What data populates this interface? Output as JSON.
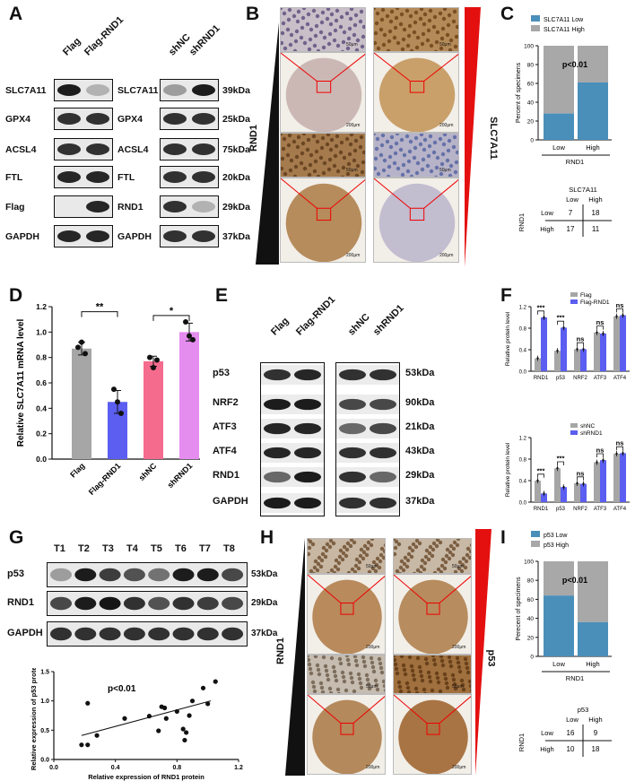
{
  "panels": {
    "A": "A",
    "B": "B",
    "C": "C",
    "D": "D",
    "E": "E",
    "F": "F",
    "G": "G",
    "H": "H",
    "I": "I"
  },
  "panelA": {
    "left_lanes": [
      "Flag",
      "Flag-RND1"
    ],
    "right_lanes": [
      "shNC",
      "shRND1"
    ],
    "left_rows": [
      "SLC7A11",
      "GPX4",
      "ACSL4",
      "FTL",
      "Flag",
      "GAPDH"
    ],
    "right_rows": [
      "SLC7A11",
      "GPX4",
      "ACSL4",
      "FTL",
      "RND1",
      "GAPDH"
    ],
    "kda": [
      "39kDa",
      "25kDa",
      "75kDa",
      "20kDa",
      "29kDa",
      "37kDa"
    ]
  },
  "panelB": {
    "left_label": "RND1",
    "right_label": "SLC7A11",
    "scale_small": "50μm",
    "scale_large": "200μm"
  },
  "panelC": {
    "legend": [
      "SLC7A11 Low",
      "SLC7A11 High"
    ],
    "ylabel": "Percent of specimens",
    "pvalue": "p<0.01",
    "group_label": "RND1",
    "table": {
      "col_header": "SLC7A11",
      "cols": [
        "Low",
        "High"
      ],
      "row_header": "RND1",
      "rows": [
        {
          "label": "Low",
          "values": [
            "7",
            "18"
          ]
        },
        {
          "label": "High",
          "values": [
            "17",
            "11"
          ]
        }
      ]
    }
  },
  "panelD": {
    "ylabel": "Relative SLC7A11 mRNA level",
    "sig": [
      "**",
      "*"
    ]
  },
  "panelE": {
    "lanes": [
      "Flag",
      "Flag-RND1",
      "shNC",
      "shRND1"
    ],
    "rows": [
      "p53",
      "NRF2",
      "ATF3",
      "ATF4",
      "RND1",
      "GAPDH"
    ],
    "kda": [
      "53kDa",
      "90kDa",
      "21kDa",
      "43kDa",
      "29kDa",
      "37kDa"
    ]
  },
  "panelF": {
    "ylabel": "Relative protein level",
    "top_legend": [
      "Flag",
      "Flag-RND1"
    ],
    "bottom_legend": [
      "shNC",
      "shRND1"
    ],
    "top_sig": [
      "***",
      "***",
      "ns",
      "ns",
      "ns"
    ],
    "bottom_sig": [
      "***",
      "***",
      "ns",
      "ns",
      "ns"
    ]
  },
  "panelG": {
    "lanes": [
      "T1",
      "T2",
      "T3",
      "T4",
      "T5",
      "T6",
      "T7",
      "T8"
    ],
    "rows": [
      "p53",
      "RND1",
      "GAPDH"
    ],
    "kda": [
      "53kDa",
      "29kDa",
      "37kDa"
    ],
    "pvalue": "p<0.01"
  },
  "panelH": {
    "left_label": "RND1",
    "right_label": "p53",
    "scale_small": "50μm",
    "scale_large": "200μm"
  },
  "panelI": {
    "legend": [
      "p53 Low",
      "p53 High"
    ],
    "ylabel": "Perecent of specimens",
    "pvalue": "p<0.01",
    "group_label": "RND1",
    "table": {
      "col_header": "p53",
      "cols": [
        "Low",
        "High"
      ],
      "row_header": "RND1",
      "rows": [
        {
          "label": "Low",
          "values": [
            "16",
            "9"
          ]
        },
        {
          "label": "High",
          "values": [
            "10",
            "18"
          ]
        }
      ]
    }
  },
  "chart_data": [
    {
      "type": "bar",
      "id": "C",
      "categories": [
        "Low",
        "High"
      ],
      "series": [
        {
          "name": "SLC7A11 Low",
          "values": [
            28,
            61
          ]
        },
        {
          "name": "SLC7A11 High",
          "values": [
            72,
            39
          ]
        }
      ],
      "stacked": true,
      "xlabel": "RND1",
      "ylabel": "Percent of specimens",
      "ylim": [
        0,
        100
      ],
      "yticks": [
        0,
        20,
        40,
        60,
        80,
        100
      ],
      "colors": {
        "low": "#4a8fba",
        "high": "#a8a8a8"
      }
    },
    {
      "type": "bar",
      "id": "D",
      "categories": [
        "Flag",
        "Flag-RND1",
        "shNC",
        "shRND1"
      ],
      "values": [
        0.87,
        0.45,
        0.77,
        1.0
      ],
      "points": [
        [
          0.88,
          0.92,
          0.83
        ],
        [
          0.55,
          0.45,
          0.36
        ],
        [
          0.8,
          0.72,
          0.78
        ],
        [
          1.08,
          0.97,
          0.94
        ]
      ],
      "errors": [
        0.05,
        0.09,
        0.04,
        0.07
      ],
      "colors": [
        "#a6a6a6",
        "#5b5ef0",
        "#f46b8d",
        "#e58cef"
      ],
      "ylabel": "Relative SLC7A11 mRNA level",
      "ylim": [
        0,
        1.2
      ],
      "yticks": [
        0.0,
        0.2,
        0.4,
        0.6,
        0.8,
        1.0,
        1.2
      ]
    },
    {
      "type": "bar",
      "id": "F-top",
      "categories": [
        "RND1",
        "p53",
        "NRF2",
        "ATF3",
        "ATF4"
      ],
      "series": [
        {
          "name": "Flag",
          "values": [
            0.24,
            0.38,
            0.41,
            0.72,
            1.02
          ]
        },
        {
          "name": "Flag-RND1",
          "values": [
            1.0,
            0.81,
            0.41,
            0.7,
            1.04
          ]
        }
      ],
      "colors": [
        "#a6a6a6",
        "#5b5ef0"
      ],
      "ylabel": "Relative protein level",
      "ylim": [
        0,
        1.2
      ],
      "yticks": [
        0.0,
        0.4,
        0.8,
        1.2
      ]
    },
    {
      "type": "bar",
      "id": "F-bottom",
      "categories": [
        "RND1",
        "p53",
        "NRF2",
        "ATF3",
        "ATF4"
      ],
      "series": [
        {
          "name": "shNC",
          "values": [
            0.4,
            0.63,
            0.35,
            0.74,
            0.9
          ]
        },
        {
          "name": "shRND1",
          "values": [
            0.16,
            0.28,
            0.34,
            0.78,
            0.91
          ]
        }
      ],
      "colors": [
        "#a6a6a6",
        "#5b5ef0"
      ],
      "ylabel": "Relative protein level",
      "ylim": [
        0,
        1.2
      ],
      "yticks": [
        0.0,
        0.4,
        0.8,
        1.2
      ]
    },
    {
      "type": "scatter",
      "id": "G",
      "x": [
        0.18,
        0.22,
        0.22,
        0.28,
        0.46,
        0.62,
        0.68,
        0.7,
        0.72,
        0.73,
        0.8,
        0.84,
        0.85,
        0.86,
        0.88,
        0.9,
        0.97,
        1.0,
        1.05
      ],
      "y": [
        0.25,
        0.25,
        0.96,
        0.41,
        0.7,
        0.74,
        0.49,
        0.9,
        0.88,
        0.7,
        0.82,
        0.52,
        0.33,
        0.46,
        0.75,
        1.0,
        1.22,
        0.95,
        1.33
      ],
      "fit": {
        "x": [
          0.18,
          1.02
        ],
        "y": [
          0.41,
          1.0
        ]
      },
      "xlabel": "Relative expression of RND1 protein",
      "ylabel": "Relative expression of p53 protein",
      "xlim": [
        0,
        1.2
      ],
      "ylim": [
        0,
        1.5
      ],
      "xticks": [
        0.0,
        0.4,
        0.8,
        1.2
      ],
      "yticks": [
        0.0,
        0.5,
        1.0,
        1.5
      ]
    },
    {
      "type": "bar",
      "id": "I",
      "categories": [
        "Low",
        "High"
      ],
      "series": [
        {
          "name": "p53 Low",
          "values": [
            64,
            36
          ]
        },
        {
          "name": "p53 High",
          "values": [
            36,
            64
          ]
        }
      ],
      "stacked": true,
      "xlabel": "RND1",
      "ylabel": "Perecent of specimens",
      "ylim": [
        0,
        100
      ],
      "yticks": [
        0,
        20,
        40,
        60,
        80,
        100
      ],
      "colors": {
        "low": "#4a8fba",
        "high": "#a8a8a8"
      }
    }
  ]
}
